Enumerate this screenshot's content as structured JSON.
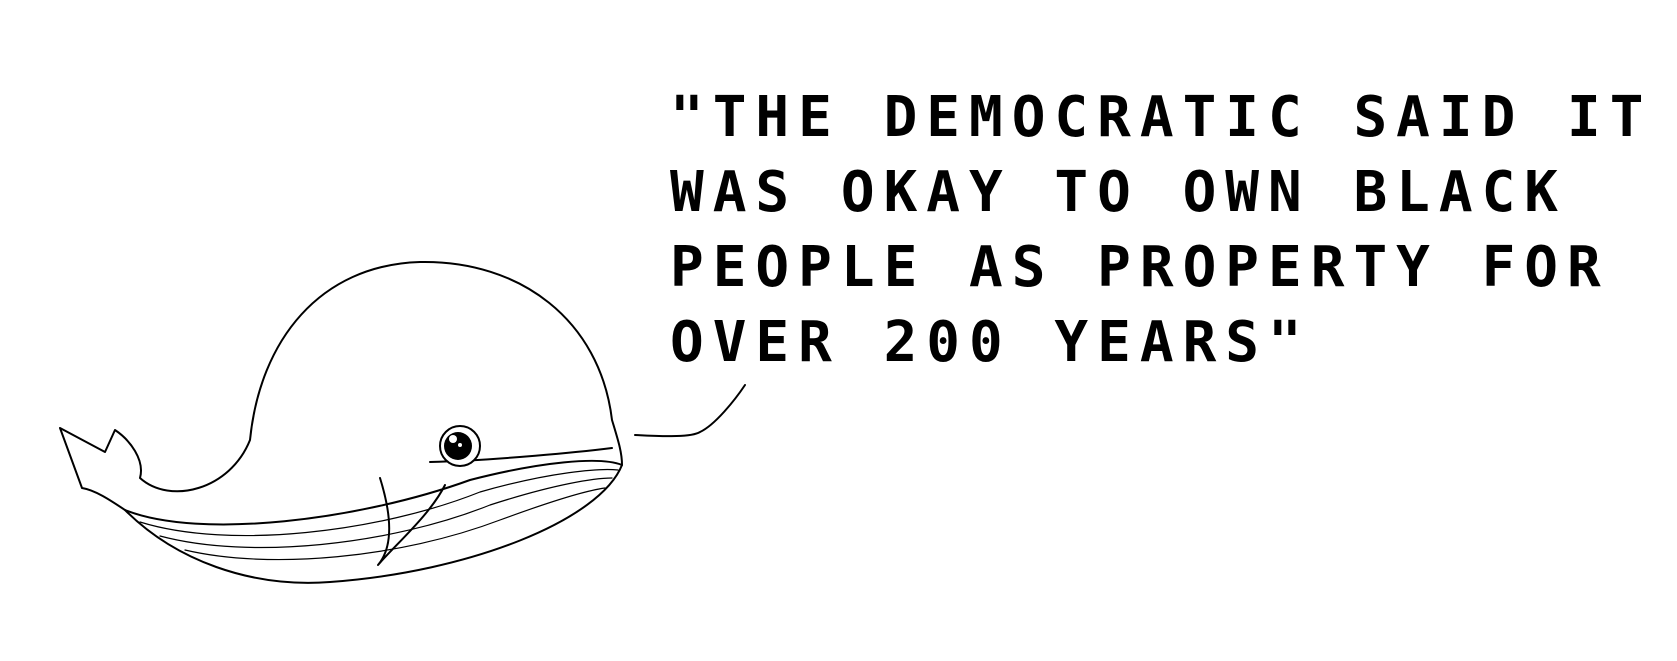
{
  "caption": {
    "lines": [
      "\"THE DEMOCRATIC SAID IT",
      "WAS OKAY TO OWN BLACK",
      "PEOPLE AS PROPERTY FOR",
      "OVER 200 YEARS\""
    ]
  },
  "illustration": {
    "subject": "whale-icon",
    "stroke_color": "#000000",
    "fill_color": "#ffffff"
  }
}
